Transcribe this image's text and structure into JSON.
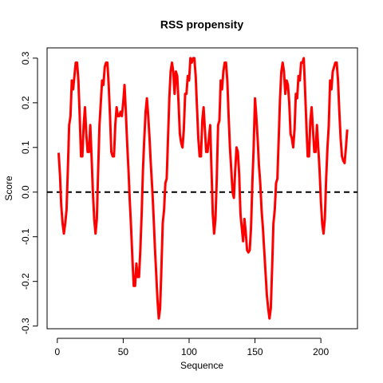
{
  "chart_data": {
    "type": "line",
    "title": "RSS propensity",
    "xlabel": "Sequence",
    "ylabel": "Score",
    "x": [
      1,
      2,
      3,
      4,
      5,
      6,
      7,
      8,
      9,
      10,
      11,
      12,
      13,
      14,
      15,
      16,
      17,
      18,
      19,
      20,
      21,
      22,
      23,
      24,
      25,
      26,
      27,
      28,
      29,
      30,
      31,
      32,
      33,
      34,
      35,
      36,
      37,
      38,
      39,
      40,
      41,
      42,
      43,
      44,
      45,
      46,
      47,
      48,
      49,
      50,
      51,
      52,
      53,
      54,
      55,
      56,
      57,
      58,
      59,
      60,
      61,
      62,
      63,
      64,
      65,
      66,
      67,
      68,
      69,
      70,
      71,
      72,
      73,
      74,
      75,
      76,
      77,
      78,
      79,
      80,
      81,
      82,
      83,
      84,
      85,
      86,
      87,
      88,
      89,
      90,
      91,
      92,
      93,
      94,
      95,
      96,
      97,
      98,
      99,
      100,
      101,
      102,
      103,
      104,
      105,
      106,
      107,
      108,
      109,
      110,
      111,
      112,
      113,
      114,
      115,
      116,
      117,
      118,
      119,
      120,
      121,
      122,
      123,
      124,
      125,
      126,
      127,
      128,
      129,
      130,
      131,
      132,
      133,
      134,
      135,
      136,
      137,
      138,
      139,
      140,
      141,
      142,
      143,
      144,
      145,
      146,
      147,
      148,
      149,
      150,
      151,
      152,
      153,
      154,
      155,
      156,
      157,
      158,
      159,
      160,
      161,
      162,
      163,
      164,
      165,
      166,
      167,
      168,
      169,
      170,
      171,
      172,
      173,
      174,
      175,
      176,
      177,
      178,
      179,
      180,
      181,
      182,
      183,
      184,
      185,
      186,
      187,
      188,
      189,
      190,
      191,
      192,
      193,
      194,
      195,
      196,
      197,
      198,
      199,
      200,
      201,
      202,
      203,
      204,
      205,
      206,
      207,
      208,
      209,
      210,
      211,
      212,
      213,
      214,
      215,
      216,
      217,
      218,
      219,
      220
    ],
    "series": [
      {
        "name": "RSS propensity",
        "color": "#ff0000",
        "values": [
          0.088,
          0.04,
          -0.03,
          -0.07,
          -0.093,
          -0.07,
          -0.04,
          0.05,
          0.15,
          0.17,
          0.25,
          0.23,
          0.26,
          0.29,
          0.29,
          0.25,
          0.17,
          0.08,
          0.08,
          0.15,
          0.19,
          0.13,
          0.09,
          0.09,
          0.15,
          0.08,
          0.0,
          -0.06,
          -0.093,
          -0.06,
          0.05,
          0.15,
          0.2,
          0.25,
          0.24,
          0.28,
          0.29,
          0.29,
          0.24,
          0.17,
          0.09,
          0.08,
          0.08,
          0.15,
          0.19,
          0.17,
          0.17,
          0.18,
          0.17,
          0.2,
          0.24,
          0.18,
          0.11,
          0.05,
          -0.02,
          -0.08,
          -0.15,
          -0.21,
          -0.21,
          -0.16,
          -0.19,
          -0.19,
          -0.13,
          -0.05,
          0.05,
          0.12,
          0.18,
          0.21,
          0.17,
          0.12,
          0.06,
          0.01,
          -0.05,
          -0.12,
          -0.18,
          -0.24,
          -0.283,
          -0.26,
          -0.17,
          -0.07,
          -0.04,
          0.02,
          0.03,
          0.12,
          0.21,
          0.27,
          0.29,
          0.27,
          0.22,
          0.27,
          0.26,
          0.2,
          0.13,
          0.11,
          0.1,
          0.14,
          0.22,
          0.22,
          0.26,
          0.25,
          0.3,
          0.29,
          0.3,
          0.3,
          0.26,
          0.19,
          0.12,
          0.08,
          0.08,
          0.16,
          0.19,
          0.14,
          0.09,
          0.09,
          0.12,
          0.15,
          0.05,
          -0.05,
          -0.093,
          -0.06,
          0.03,
          0.15,
          0.16,
          0.25,
          0.23,
          0.27,
          0.29,
          0.29,
          0.25,
          0.17,
          0.1,
          0.05,
          0.0,
          -0.013,
          0.05,
          0.1,
          0.09,
          0.04,
          -0.05,
          -0.08,
          -0.11,
          -0.06,
          -0.09,
          -0.13,
          -0.135,
          -0.13,
          -0.08,
          0.02,
          0.1,
          0.21,
          0.17,
          0.12,
          0.06,
          0.02,
          -0.04,
          -0.08,
          -0.13,
          -0.18,
          -0.23,
          -0.26,
          -0.283,
          -0.26,
          -0.17,
          -0.07,
          -0.04,
          0.02,
          0.03,
          0.12,
          0.21,
          0.27,
          0.29,
          0.27,
          0.22,
          0.25,
          0.24,
          0.2,
          0.13,
          0.12,
          0.1,
          0.14,
          0.22,
          0.21,
          0.26,
          0.25,
          0.29,
          0.29,
          0.3,
          0.23,
          0.15,
          0.08,
          0.08,
          0.16,
          0.19,
          0.14,
          0.09,
          0.09,
          0.15,
          0.1,
          0.05,
          -0.02,
          -0.07,
          -0.093,
          -0.06,
          0.03,
          0.1,
          0.15,
          0.25,
          0.23,
          0.27,
          0.28,
          0.29,
          0.29,
          0.25,
          0.18,
          0.12,
          0.08,
          0.07,
          0.065,
          0.1,
          0.14
        ]
      }
    ],
    "hline": 0,
    "xlim": [
      -7.76,
      227.76
    ],
    "xticks": [
      0,
      50,
      100,
      150,
      200
    ],
    "ylim": [
      -0.306,
      0.323
    ],
    "yticks": [
      -0.3,
      -0.2,
      -0.1,
      {
        "value": 0,
        "label": "0.0"
      },
      0.1,
      0.2,
      0.3
    ]
  }
}
